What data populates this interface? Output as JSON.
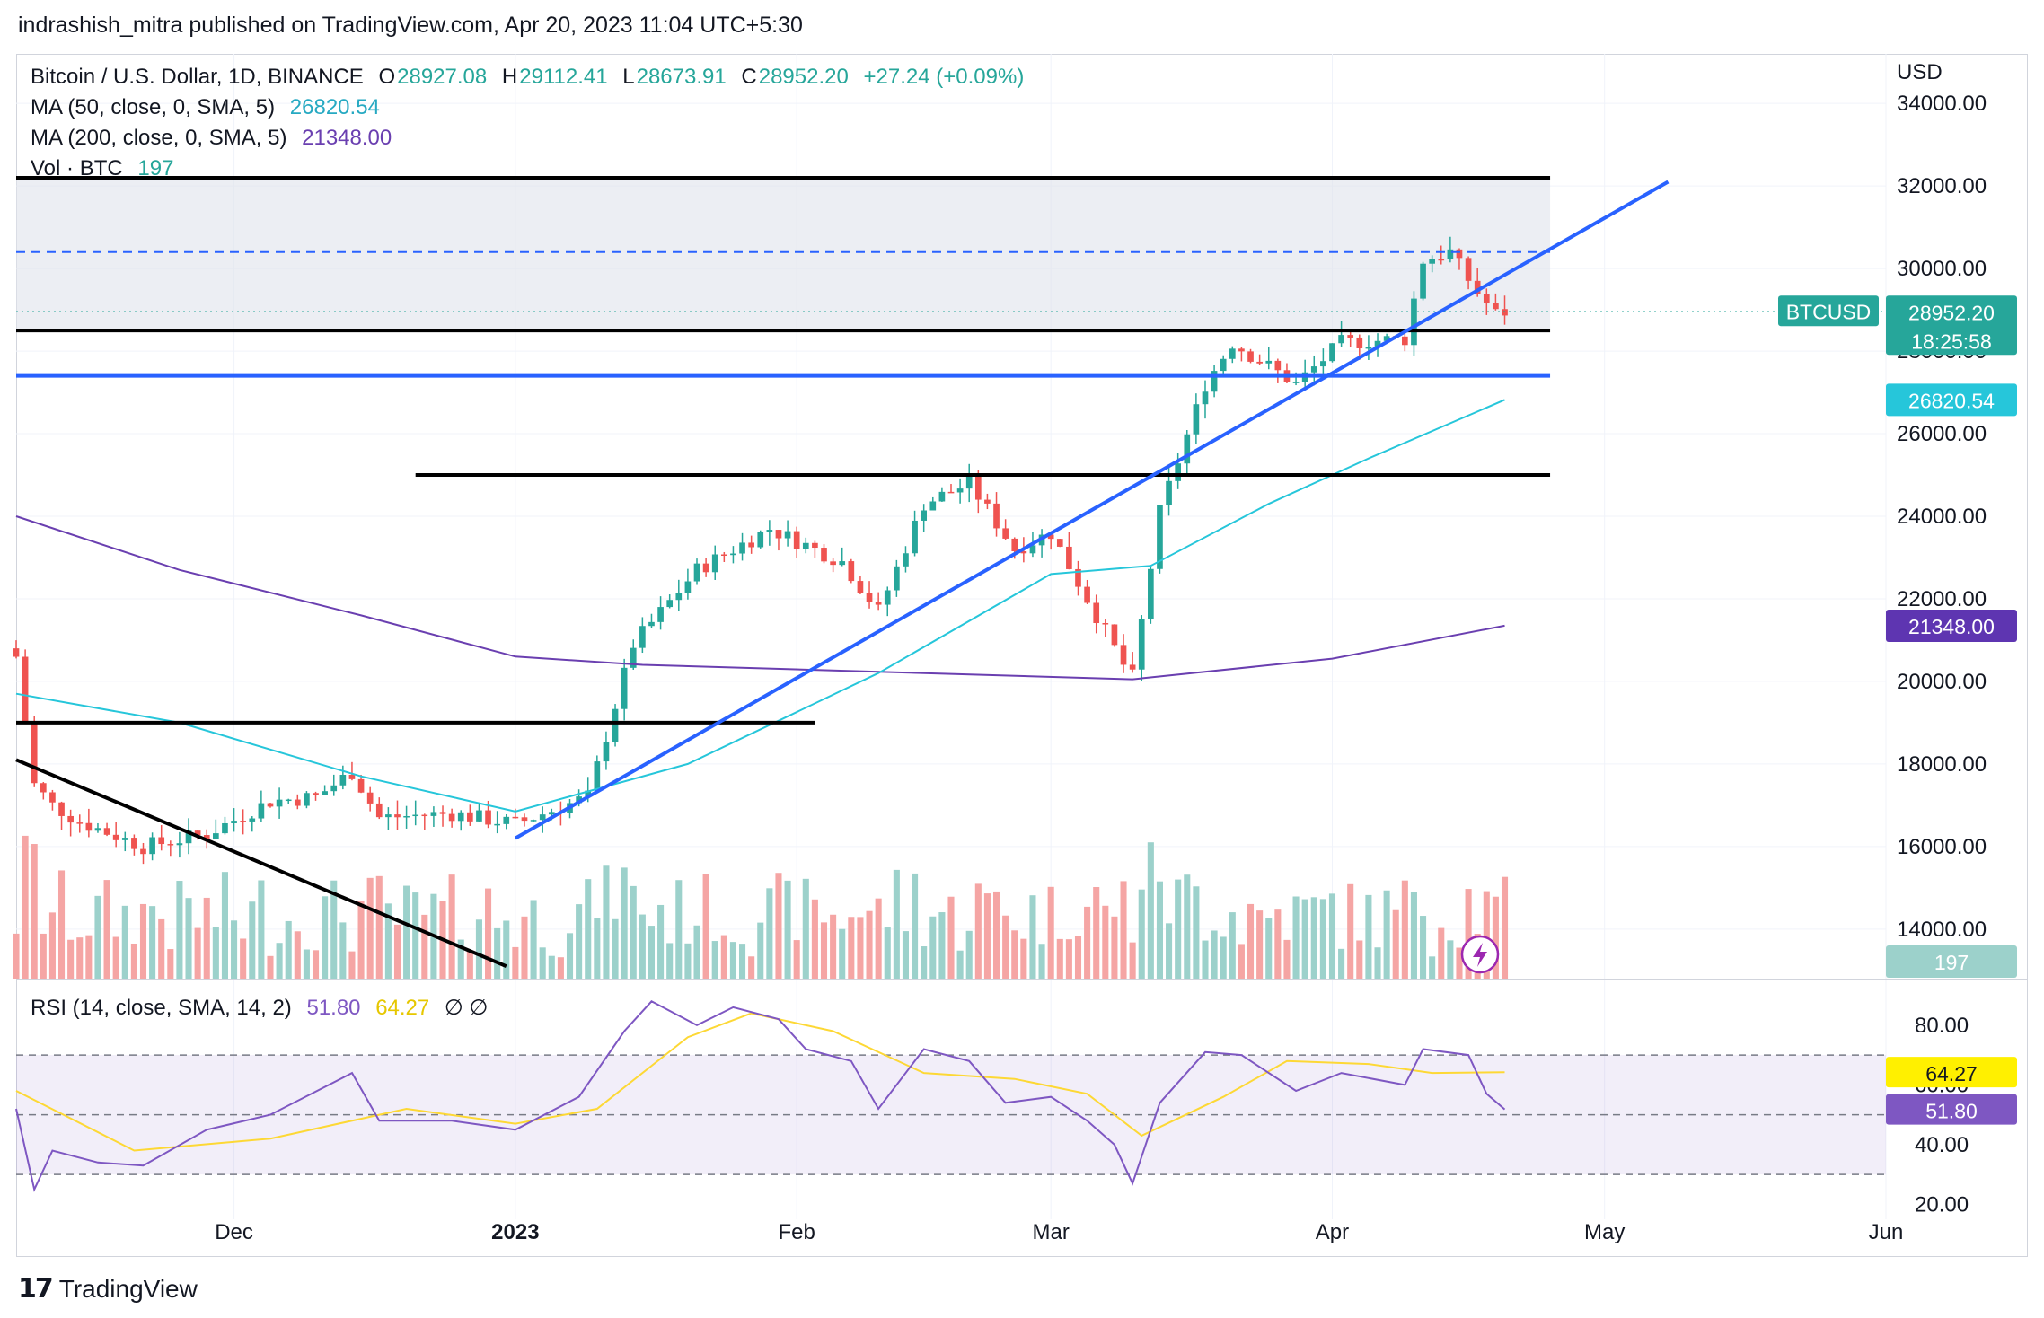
{
  "header": "indrashish_mitra published on TradingView.com, Apr 20, 2023 11:04 UTC+5:30",
  "footer": {
    "brand": "TradingView",
    "logo_icon": "tradingview-logo"
  },
  "legend": {
    "symbol": "Bitcoin / U.S. Dollar, 1D, BINANCE",
    "o_label": "O",
    "o": "28927.08",
    "h_label": "H",
    "h": "29112.41",
    "l_label": "L",
    "l": "28673.91",
    "c_label": "C",
    "c": "28952.20",
    "chg": "+27.24 (+0.09%)",
    "ma50_label": "MA (50, close, 0, SMA, 5)",
    "ma50": "26820.54",
    "ma200_label": "MA (200, close, 0, SMA, 5)",
    "ma200": "21348.00",
    "vol_label": "Vol · BTC",
    "vol": "197",
    "rsi_label": "RSI (14, close, SMA, 14, 2)",
    "rsi": "51.80",
    "rsi_sma": "64.27",
    "rsi_extra": "∅ ∅"
  },
  "colors": {
    "up": "#26a69a",
    "down": "#ef5350",
    "vol_up": "#9cd1cb",
    "vol_down": "#f5a5a4",
    "ma50": "#26c6da",
    "ma200": "#6a3fb0",
    "trend": "#2962ff",
    "rsi": "#7e57c2",
    "rsi_sma": "#fdd835"
  },
  "chart_data": {
    "type": "candlestick",
    "title": "Bitcoin / U.S. Dollar, 1D, BINANCE",
    "y_unit": "USD",
    "ylim": [
      12800,
      35200
    ],
    "y_ticks": [
      14000,
      16000,
      18000,
      20000,
      22000,
      24000,
      26000,
      28000,
      30000,
      32000,
      34000
    ],
    "y_tick_labels": [
      "14000.00",
      "16000.00",
      "18000.00",
      "20000.00",
      "22000.00",
      "24000.00",
      "26000.00",
      "28000.00",
      "30000.00",
      "32000.00",
      "34000.00"
    ],
    "x_labels": [
      "Dec",
      "2023",
      "Feb",
      "Mar",
      "Apr",
      "May",
      "Jun"
    ],
    "x_label_dates": [
      "2022-12-01",
      "2023-01-01",
      "2023-02-01",
      "2023-03-01",
      "2023-04-01",
      "2023-05-01",
      "2023-06-01"
    ],
    "x_range": [
      "2022-11-07",
      "2023-06-01"
    ],
    "last_price_label": "BTCUSD",
    "last_price": "28952.20",
    "countdown": "18:25:58",
    "ma50_tag": "26820.54",
    "ma200_tag": "21348.00",
    "volume_tag": "197",
    "close_key_points": [
      [
        "2022-11-07",
        20600
      ],
      [
        "2022-11-09",
        17500
      ],
      [
        "2022-11-11",
        17000
      ],
      [
        "2022-11-14",
        16600
      ],
      [
        "2022-11-21",
        16000
      ],
      [
        "2022-11-28",
        16300
      ],
      [
        "2022-12-05",
        17100
      ],
      [
        "2022-12-10",
        17200
      ],
      [
        "2022-12-14",
        17800
      ],
      [
        "2022-12-17",
        16700
      ],
      [
        "2022-12-25",
        16800
      ],
      [
        "2023-01-01",
        16550
      ],
      [
        "2023-01-09",
        17200
      ],
      [
        "2023-01-14",
        20900
      ],
      [
        "2023-01-21",
        22700
      ],
      [
        "2023-01-29",
        23700
      ],
      [
        "2023-02-06",
        22900
      ],
      [
        "2023-02-10",
        21700
      ],
      [
        "2023-02-15",
        24300
      ],
      [
        "2023-02-20",
        24800
      ],
      [
        "2023-02-25",
        23200
      ],
      [
        "2023-03-01",
        23600
      ],
      [
        "2023-03-04",
        22400
      ],
      [
        "2023-03-09",
        20400
      ],
      [
        "2023-03-10",
        20100
      ],
      [
        "2023-03-13",
        24100
      ],
      [
        "2023-03-18",
        27200
      ],
      [
        "2023-03-21",
        28200
      ],
      [
        "2023-03-28",
        27200
      ],
      [
        "2023-04-02",
        28200
      ],
      [
        "2023-04-09",
        28300
      ],
      [
        "2023-04-11",
        30200
      ],
      [
        "2023-04-14",
        30400
      ],
      [
        "2023-04-17",
        29400
      ],
      [
        "2023-04-19",
        28900
      ],
      [
        "2023-04-20",
        28952
      ]
    ],
    "ma50_points": [
      [
        "2022-11-07",
        19700
      ],
      [
        "2022-11-25",
        19000
      ],
      [
        "2022-12-15",
        17700
      ],
      [
        "2023-01-01",
        16850
      ],
      [
        "2023-01-20",
        18000
      ],
      [
        "2023-02-10",
        20200
      ],
      [
        "2023-03-01",
        22600
      ],
      [
        "2023-03-12",
        22800
      ],
      [
        "2023-03-25",
        24300
      ],
      [
        "2023-04-05",
        25400
      ],
      [
        "2023-04-20",
        26820
      ]
    ],
    "ma200_points": [
      [
        "2022-11-07",
        24000
      ],
      [
        "2022-11-25",
        22700
      ],
      [
        "2022-12-15",
        21600
      ],
      [
        "2023-01-01",
        20600
      ],
      [
        "2023-01-15",
        20400
      ],
      [
        "2023-02-15",
        20200
      ],
      [
        "2023-03-10",
        20050
      ],
      [
        "2023-04-01",
        20550
      ],
      [
        "2023-04-20",
        21348
      ]
    ],
    "support_resistance": [
      {
        "price": 32200,
        "from": "2022-11-07",
        "to": "2023-04-25",
        "style": "solid"
      },
      {
        "price": 30400,
        "from": "2022-11-07",
        "to": "2023-04-25",
        "style": "dashed"
      },
      {
        "price": 28500,
        "from": "2022-11-07",
        "to": "2023-04-25",
        "style": "solid"
      },
      {
        "price": 25000,
        "from": "2022-12-21",
        "to": "2023-04-25",
        "style": "solid"
      },
      {
        "price": 19000,
        "from": "2022-11-07",
        "to": "2023-02-03",
        "style": "solid"
      }
    ],
    "trendlines": [
      {
        "from": [
          "2022-11-07",
          18100
        ],
        "to": [
          "2022-12-31",
          13100
        ],
        "color": "black"
      },
      {
        "from": [
          "2023-01-01",
          16200
        ],
        "to": [
          "2023-05-08",
          32100
        ],
        "color": "blue"
      }
    ],
    "blue_horizontal": 27400,
    "rsi": {
      "ylim": [
        15,
        95
      ],
      "y_ticks": [
        20,
        40,
        60,
        80
      ],
      "y_tick_labels": [
        "20.00",
        "40.00",
        "60.00",
        "80.00"
      ],
      "bands": [
        30,
        50,
        70
      ],
      "rsi_points": [
        [
          "2022-11-07",
          52
        ],
        [
          "2022-11-09",
          25
        ],
        [
          "2022-11-11",
          38
        ],
        [
          "2022-11-16",
          34
        ],
        [
          "2022-11-21",
          33
        ],
        [
          "2022-11-28",
          45
        ],
        [
          "2022-12-05",
          50
        ],
        [
          "2022-12-14",
          64
        ],
        [
          "2022-12-17",
          48
        ],
        [
          "2022-12-25",
          48
        ],
        [
          "2023-01-01",
          45
        ],
        [
          "2023-01-08",
          56
        ],
        [
          "2023-01-13",
          78
        ],
        [
          "2023-01-16",
          88
        ],
        [
          "2023-01-21",
          80
        ],
        [
          "2023-01-25",
          86
        ],
        [
          "2023-01-30",
          82
        ],
        [
          "2023-02-02",
          72
        ],
        [
          "2023-02-07",
          68
        ],
        [
          "2023-02-10",
          52
        ],
        [
          "2023-02-15",
          72
        ],
        [
          "2023-02-20",
          68
        ],
        [
          "2023-02-24",
          54
        ],
        [
          "2023-03-01",
          56
        ],
        [
          "2023-03-05",
          48
        ],
        [
          "2023-03-08",
          40
        ],
        [
          "2023-03-10",
          27
        ],
        [
          "2023-03-13",
          54
        ],
        [
          "2023-03-18",
          71
        ],
        [
          "2023-03-22",
          70
        ],
        [
          "2023-03-28",
          58
        ],
        [
          "2023-04-02",
          64
        ],
        [
          "2023-04-09",
          60
        ],
        [
          "2023-04-11",
          72
        ],
        [
          "2023-04-16",
          70
        ],
        [
          "2023-04-18",
          57
        ],
        [
          "2023-04-20",
          51.8
        ]
      ],
      "rsi_sma_points": [
        [
          "2022-11-07",
          58
        ],
        [
          "2022-11-20",
          38
        ],
        [
          "2022-12-05",
          42
        ],
        [
          "2022-12-20",
          52
        ],
        [
          "2023-01-01",
          47
        ],
        [
          "2023-01-10",
          52
        ],
        [
          "2023-01-20",
          76
        ],
        [
          "2023-01-27",
          84
        ],
        [
          "2023-02-05",
          78
        ],
        [
          "2023-02-15",
          64
        ],
        [
          "2023-02-25",
          62
        ],
        [
          "2023-03-05",
          57
        ],
        [
          "2023-03-11",
          43
        ],
        [
          "2023-03-20",
          56
        ],
        [
          "2023-03-27",
          68
        ],
        [
          "2023-04-05",
          67
        ],
        [
          "2023-04-12",
          64
        ],
        [
          "2023-04-20",
          64.27
        ]
      ]
    }
  }
}
